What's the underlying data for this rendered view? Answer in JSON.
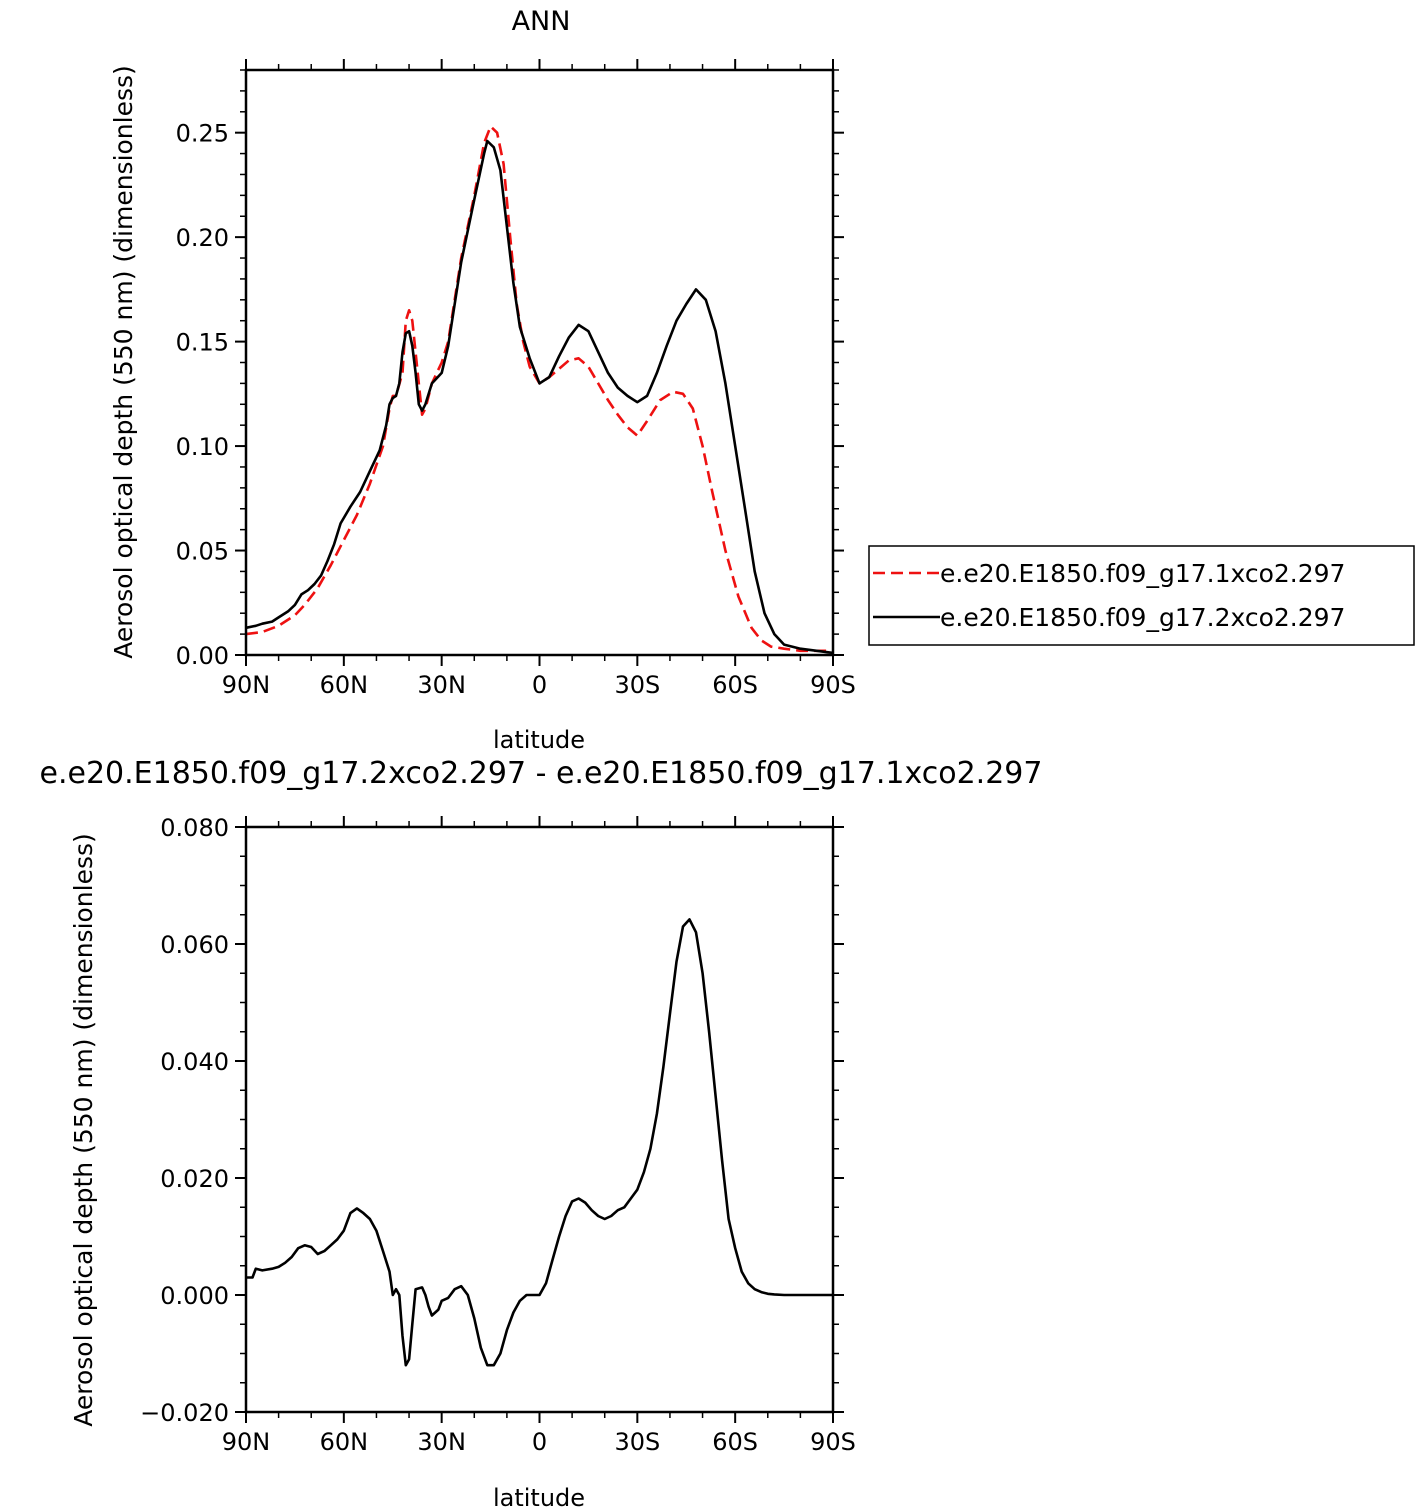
{
  "chart_data": [
    {
      "type": "line",
      "title": "ANN",
      "xlabel": "latitude",
      "ylabel": "Aerosol optical depth (550 nm) (dimensionless)",
      "xlim": [
        90,
        -90
      ],
      "ylim": [
        0,
        0.28
      ],
      "x_ticks": [
        {
          "value": 90,
          "label": "90N"
        },
        {
          "value": 60,
          "label": "60N"
        },
        {
          "value": 30,
          "label": "30N"
        },
        {
          "value": 0,
          "label": "0"
        },
        {
          "value": -30,
          "label": "30S"
        },
        {
          "value": -60,
          "label": "60S"
        },
        {
          "value": -90,
          "label": "90S"
        }
      ],
      "y_ticks": [
        {
          "value": 0.0,
          "label": "0.00"
        },
        {
          "value": 0.05,
          "label": "0.05"
        },
        {
          "value": 0.1,
          "label": "0.10"
        },
        {
          "value": 0.15,
          "label": "0.15"
        },
        {
          "value": 0.2,
          "label": "0.20"
        },
        {
          "value": 0.25,
          "label": "0.25"
        }
      ],
      "legend_position": "right",
      "series": [
        {
          "name": "e.e20.E1850.f09_g17.1xco2.297",
          "color": "#ee1111",
          "dashed": true,
          "x": [
            90,
            85,
            80,
            75,
            72,
            68,
            64,
            60,
            56,
            52,
            48,
            46,
            45,
            44,
            42,
            41,
            40,
            39,
            37,
            36,
            35,
            33,
            30,
            28,
            24,
            20,
            17,
            15,
            13,
            11,
            9,
            7,
            5,
            3,
            0,
            -3,
            -6,
            -9,
            -12,
            -15,
            -18,
            -21,
            -24,
            -27,
            -30,
            -33,
            -37,
            -41,
            -44,
            -47,
            -50,
            -53,
            -57,
            -61,
            -65,
            -68,
            -71,
            -75,
            -80,
            -85,
            -90
          ],
          "y": [
            0.01,
            0.011,
            0.014,
            0.019,
            0.024,
            0.032,
            0.043,
            0.055,
            0.067,
            0.082,
            0.1,
            0.118,
            0.124,
            0.124,
            0.135,
            0.16,
            0.165,
            0.16,
            0.13,
            0.115,
            0.118,
            0.13,
            0.14,
            0.15,
            0.19,
            0.22,
            0.245,
            0.253,
            0.25,
            0.235,
            0.2,
            0.168,
            0.15,
            0.138,
            0.13,
            0.133,
            0.137,
            0.141,
            0.142,
            0.138,
            0.13,
            0.122,
            0.115,
            0.109,
            0.105,
            0.112,
            0.122,
            0.126,
            0.125,
            0.118,
            0.1,
            0.078,
            0.05,
            0.028,
            0.013,
            0.007,
            0.004,
            0.003,
            0.002,
            0.002,
            0.002
          ]
        },
        {
          "name": "e.e20.E1850.f09_g17.2xco2.297",
          "color": "#000000",
          "dashed": false,
          "x": [
            90,
            87,
            85,
            82,
            80,
            77,
            75,
            73,
            71,
            69,
            67,
            65,
            63,
            61,
            58,
            55,
            52,
            49,
            47,
            46,
            45,
            44,
            43,
            42,
            41,
            40,
            39,
            38,
            37,
            36,
            35,
            33,
            30,
            28,
            24,
            20,
            17,
            16,
            14,
            12,
            10,
            8,
            6,
            3,
            0,
            -3,
            -6,
            -9,
            -12,
            -15,
            -18,
            -21,
            -24,
            -27,
            -30,
            -33,
            -36,
            -39,
            -42,
            -45,
            -48,
            -51,
            -54,
            -57,
            -60,
            -63,
            -66,
            -69,
            -72,
            -75,
            -80,
            -85,
            -90
          ],
          "y": [
            0.013,
            0.014,
            0.015,
            0.016,
            0.018,
            0.021,
            0.024,
            0.029,
            0.031,
            0.034,
            0.038,
            0.045,
            0.053,
            0.063,
            0.071,
            0.078,
            0.088,
            0.098,
            0.11,
            0.12,
            0.123,
            0.124,
            0.13,
            0.145,
            0.154,
            0.155,
            0.148,
            0.135,
            0.12,
            0.117,
            0.12,
            0.13,
            0.135,
            0.148,
            0.188,
            0.218,
            0.24,
            0.246,
            0.243,
            0.232,
            0.205,
            0.178,
            0.157,
            0.142,
            0.13,
            0.133,
            0.143,
            0.152,
            0.158,
            0.155,
            0.145,
            0.135,
            0.128,
            0.124,
            0.121,
            0.124,
            0.135,
            0.148,
            0.16,
            0.168,
            0.175,
            0.17,
            0.155,
            0.13,
            0.1,
            0.07,
            0.04,
            0.02,
            0.01,
            0.005,
            0.003,
            0.002,
            0.001
          ]
        }
      ]
    },
    {
      "type": "line",
      "title": "e.e20.E1850.f09_g17.2xco2.297 - e.e20.E1850.f09_g17.1xco2.297",
      "xlabel": "latitude",
      "ylabel": "Aerosol optical depth (550 nm) (dimensionless)",
      "xlim": [
        90,
        -90
      ],
      "ylim": [
        -0.02,
        0.08
      ],
      "x_ticks": [
        {
          "value": 90,
          "label": "90N"
        },
        {
          "value": 60,
          "label": "60N"
        },
        {
          "value": 30,
          "label": "30N"
        },
        {
          "value": 0,
          "label": "0"
        },
        {
          "value": -30,
          "label": "30S"
        },
        {
          "value": -60,
          "label": "60S"
        },
        {
          "value": -90,
          "label": "90S"
        }
      ],
      "y_ticks": [
        {
          "value": -0.02,
          "label": "−0.020"
        },
        {
          "value": 0.0,
          "label": "0.000"
        },
        {
          "value": 0.02,
          "label": "0.020"
        },
        {
          "value": 0.04,
          "label": "0.040"
        },
        {
          "value": 0.06,
          "label": "0.060"
        },
        {
          "value": 0.08,
          "label": "0.080"
        }
      ],
      "series": [
        {
          "color": "#000000",
          "dashed": false,
          "x": [
            90,
            88,
            87,
            85,
            82,
            80,
            78,
            76,
            74,
            72,
            70,
            68,
            66,
            64,
            62,
            60,
            58,
            56,
            54,
            52,
            50,
            48,
            46,
            45,
            44,
            43,
            42,
            41,
            40,
            39,
            38,
            36,
            35,
            34,
            33,
            31,
            30,
            28,
            26,
            24,
            22,
            20,
            18,
            16,
            14,
            12,
            10,
            8,
            6,
            4,
            2,
            0,
            -2,
            -4,
            -6,
            -8,
            -10,
            -12,
            -14,
            -16,
            -18,
            -20,
            -22,
            -24,
            -26,
            -28,
            -30,
            -32,
            -34,
            -36,
            -38,
            -40,
            -42,
            -44,
            -46,
            -48,
            -50,
            -52,
            -54,
            -56,
            -58,
            -60,
            -62,
            -64,
            -66,
            -68,
            -70,
            -72,
            -75,
            -80,
            -85,
            -90
          ],
          "y": [
            0.003,
            0.003,
            0.0045,
            0.0042,
            0.0045,
            0.0048,
            0.0055,
            0.0065,
            0.008,
            0.0085,
            0.0082,
            0.007,
            0.0075,
            0.0085,
            0.0095,
            0.011,
            0.014,
            0.0148,
            0.014,
            0.013,
            0.011,
            0.0075,
            0.004,
            0.0,
            0.001,
            0.0,
            -0.007,
            -0.012,
            -0.011,
            -0.005,
            0.001,
            0.0013,
            0.0,
            -0.002,
            -0.0035,
            -0.0025,
            -0.001,
            -0.0005,
            0.001,
            0.0015,
            0.0,
            -0.004,
            -0.009,
            -0.012,
            -0.012,
            -0.01,
            -0.006,
            -0.003,
            -0.001,
            0.0,
            0.0,
            0.0,
            0.002,
            0.006,
            0.01,
            0.0135,
            0.016,
            0.0165,
            0.0158,
            0.0145,
            0.0135,
            0.013,
            0.0135,
            0.0145,
            0.015,
            0.0165,
            0.018,
            0.021,
            0.025,
            0.031,
            0.039,
            0.048,
            0.057,
            0.063,
            0.0642,
            0.062,
            0.055,
            0.045,
            0.034,
            0.023,
            0.013,
            0.008,
            0.004,
            0.002,
            0.001,
            0.0005,
            0.0002,
            0.0001,
            0.0,
            0.0,
            0.0,
            0.0
          ]
        }
      ]
    }
  ]
}
